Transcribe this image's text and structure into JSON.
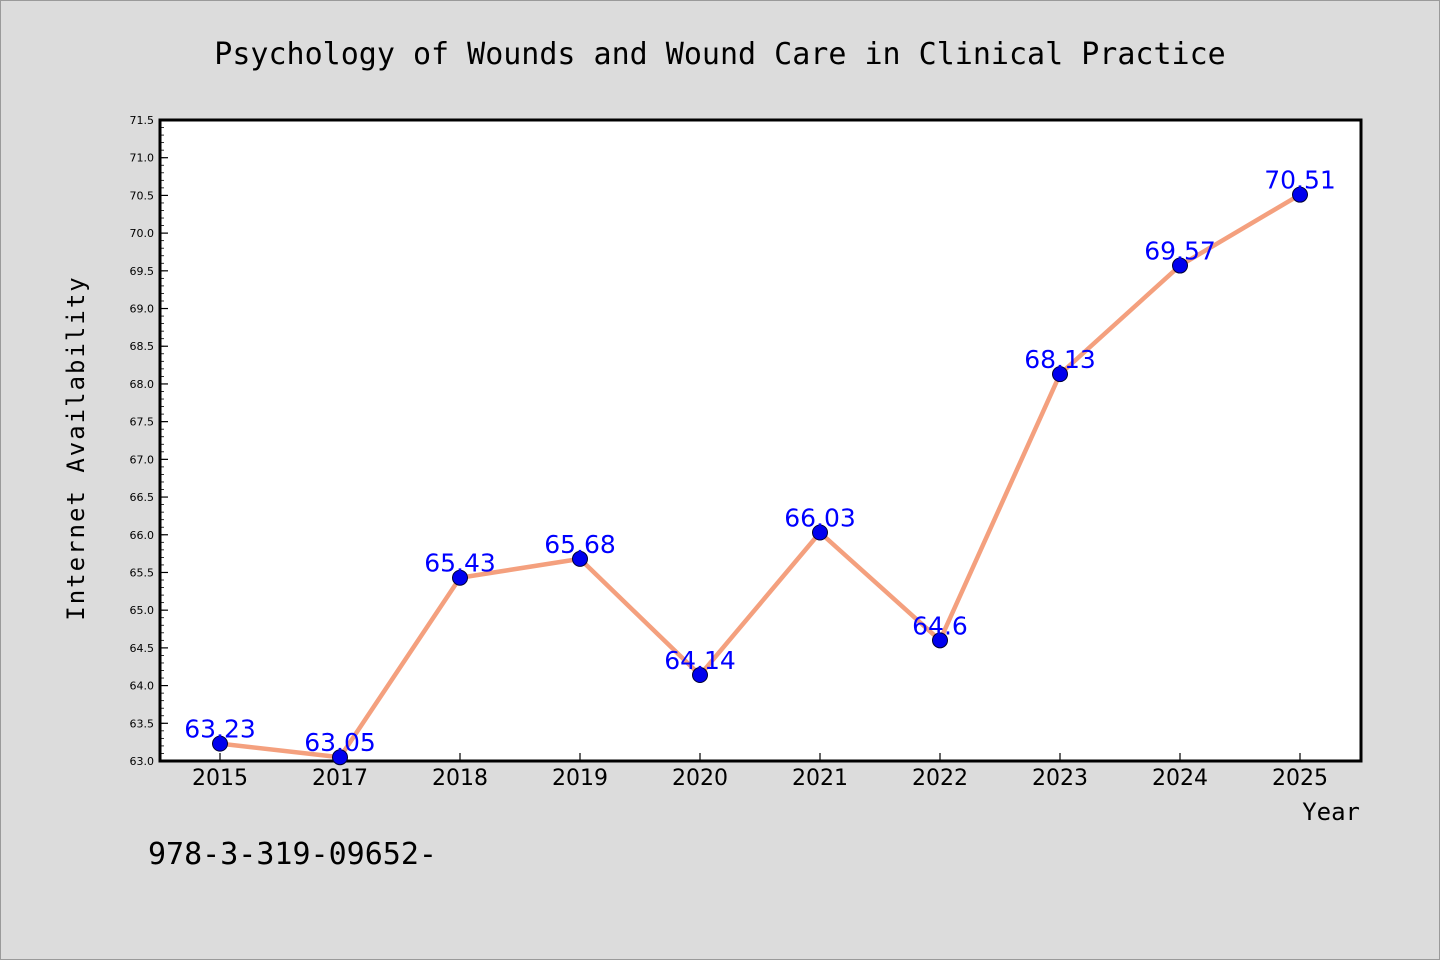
{
  "chart_data": {
    "type": "line",
    "title": "Psychology of Wounds and Wound Care in Clinical Practice",
    "xlabel": "Year",
    "ylabel": "Internet Availability",
    "categories": [
      "2015",
      "2017",
      "2018",
      "2019",
      "2020",
      "2021",
      "2022",
      "2023",
      "2024",
      "2025"
    ],
    "series": [
      {
        "values": [
          63.23,
          63.05,
          65.43,
          65.68,
          64.14,
          66.03,
          64.6,
          68.13,
          69.57,
          70.51
        ],
        "line_color": "#f4a07e",
        "marker_color": "#0000ee"
      }
    ],
    "data_labels": [
      "63.23",
      "63.05",
      "65.43",
      "65.68",
      "64.14",
      "66.03",
      "64.6",
      "68.13",
      "69.57",
      "70.51"
    ],
    "ylim": [
      63.0,
      71.5
    ],
    "yticks": [
      "63.0",
      "63.5",
      "64.0",
      "64.5",
      "65.0",
      "65.5",
      "66.0",
      "66.5",
      "67.0",
      "67.5",
      "68.0",
      "68.5",
      "69.0",
      "69.5",
      "70.0",
      "70.5",
      "71.0",
      "71.5"
    ],
    "grid": false,
    "legend": "none"
  },
  "footnote": "978-3-319-09652-"
}
